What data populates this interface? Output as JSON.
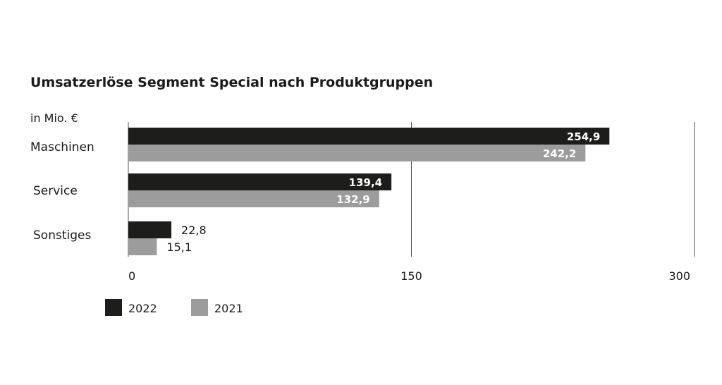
{
  "chart_data": {
    "type": "bar",
    "orientation": "horizontal",
    "title": "Umsatzerlöse Segment Special nach Produktgruppen",
    "unit": "in Mio. €",
    "categories": [
      "Maschinen",
      "Service",
      "Sonstiges"
    ],
    "series": [
      {
        "name": "2022",
        "color": "#1d1d1b",
        "values": [
          254.9,
          139.4,
          22.8
        ],
        "labels": [
          "254,9",
          "139,4",
          "22,8"
        ]
      },
      {
        "name": "2021",
        "color": "#9d9c9c",
        "values": [
          242.2,
          132.9,
          15.1
        ],
        "labels": [
          "242,2",
          "132,9",
          "15,1"
        ]
      }
    ],
    "xlim": [
      0,
      300
    ],
    "xticks": [
      0,
      150,
      300
    ],
    "xtick_labels": [
      "0",
      "150",
      "300"
    ],
    "grid": true,
    "legend": "bottom-left"
  }
}
